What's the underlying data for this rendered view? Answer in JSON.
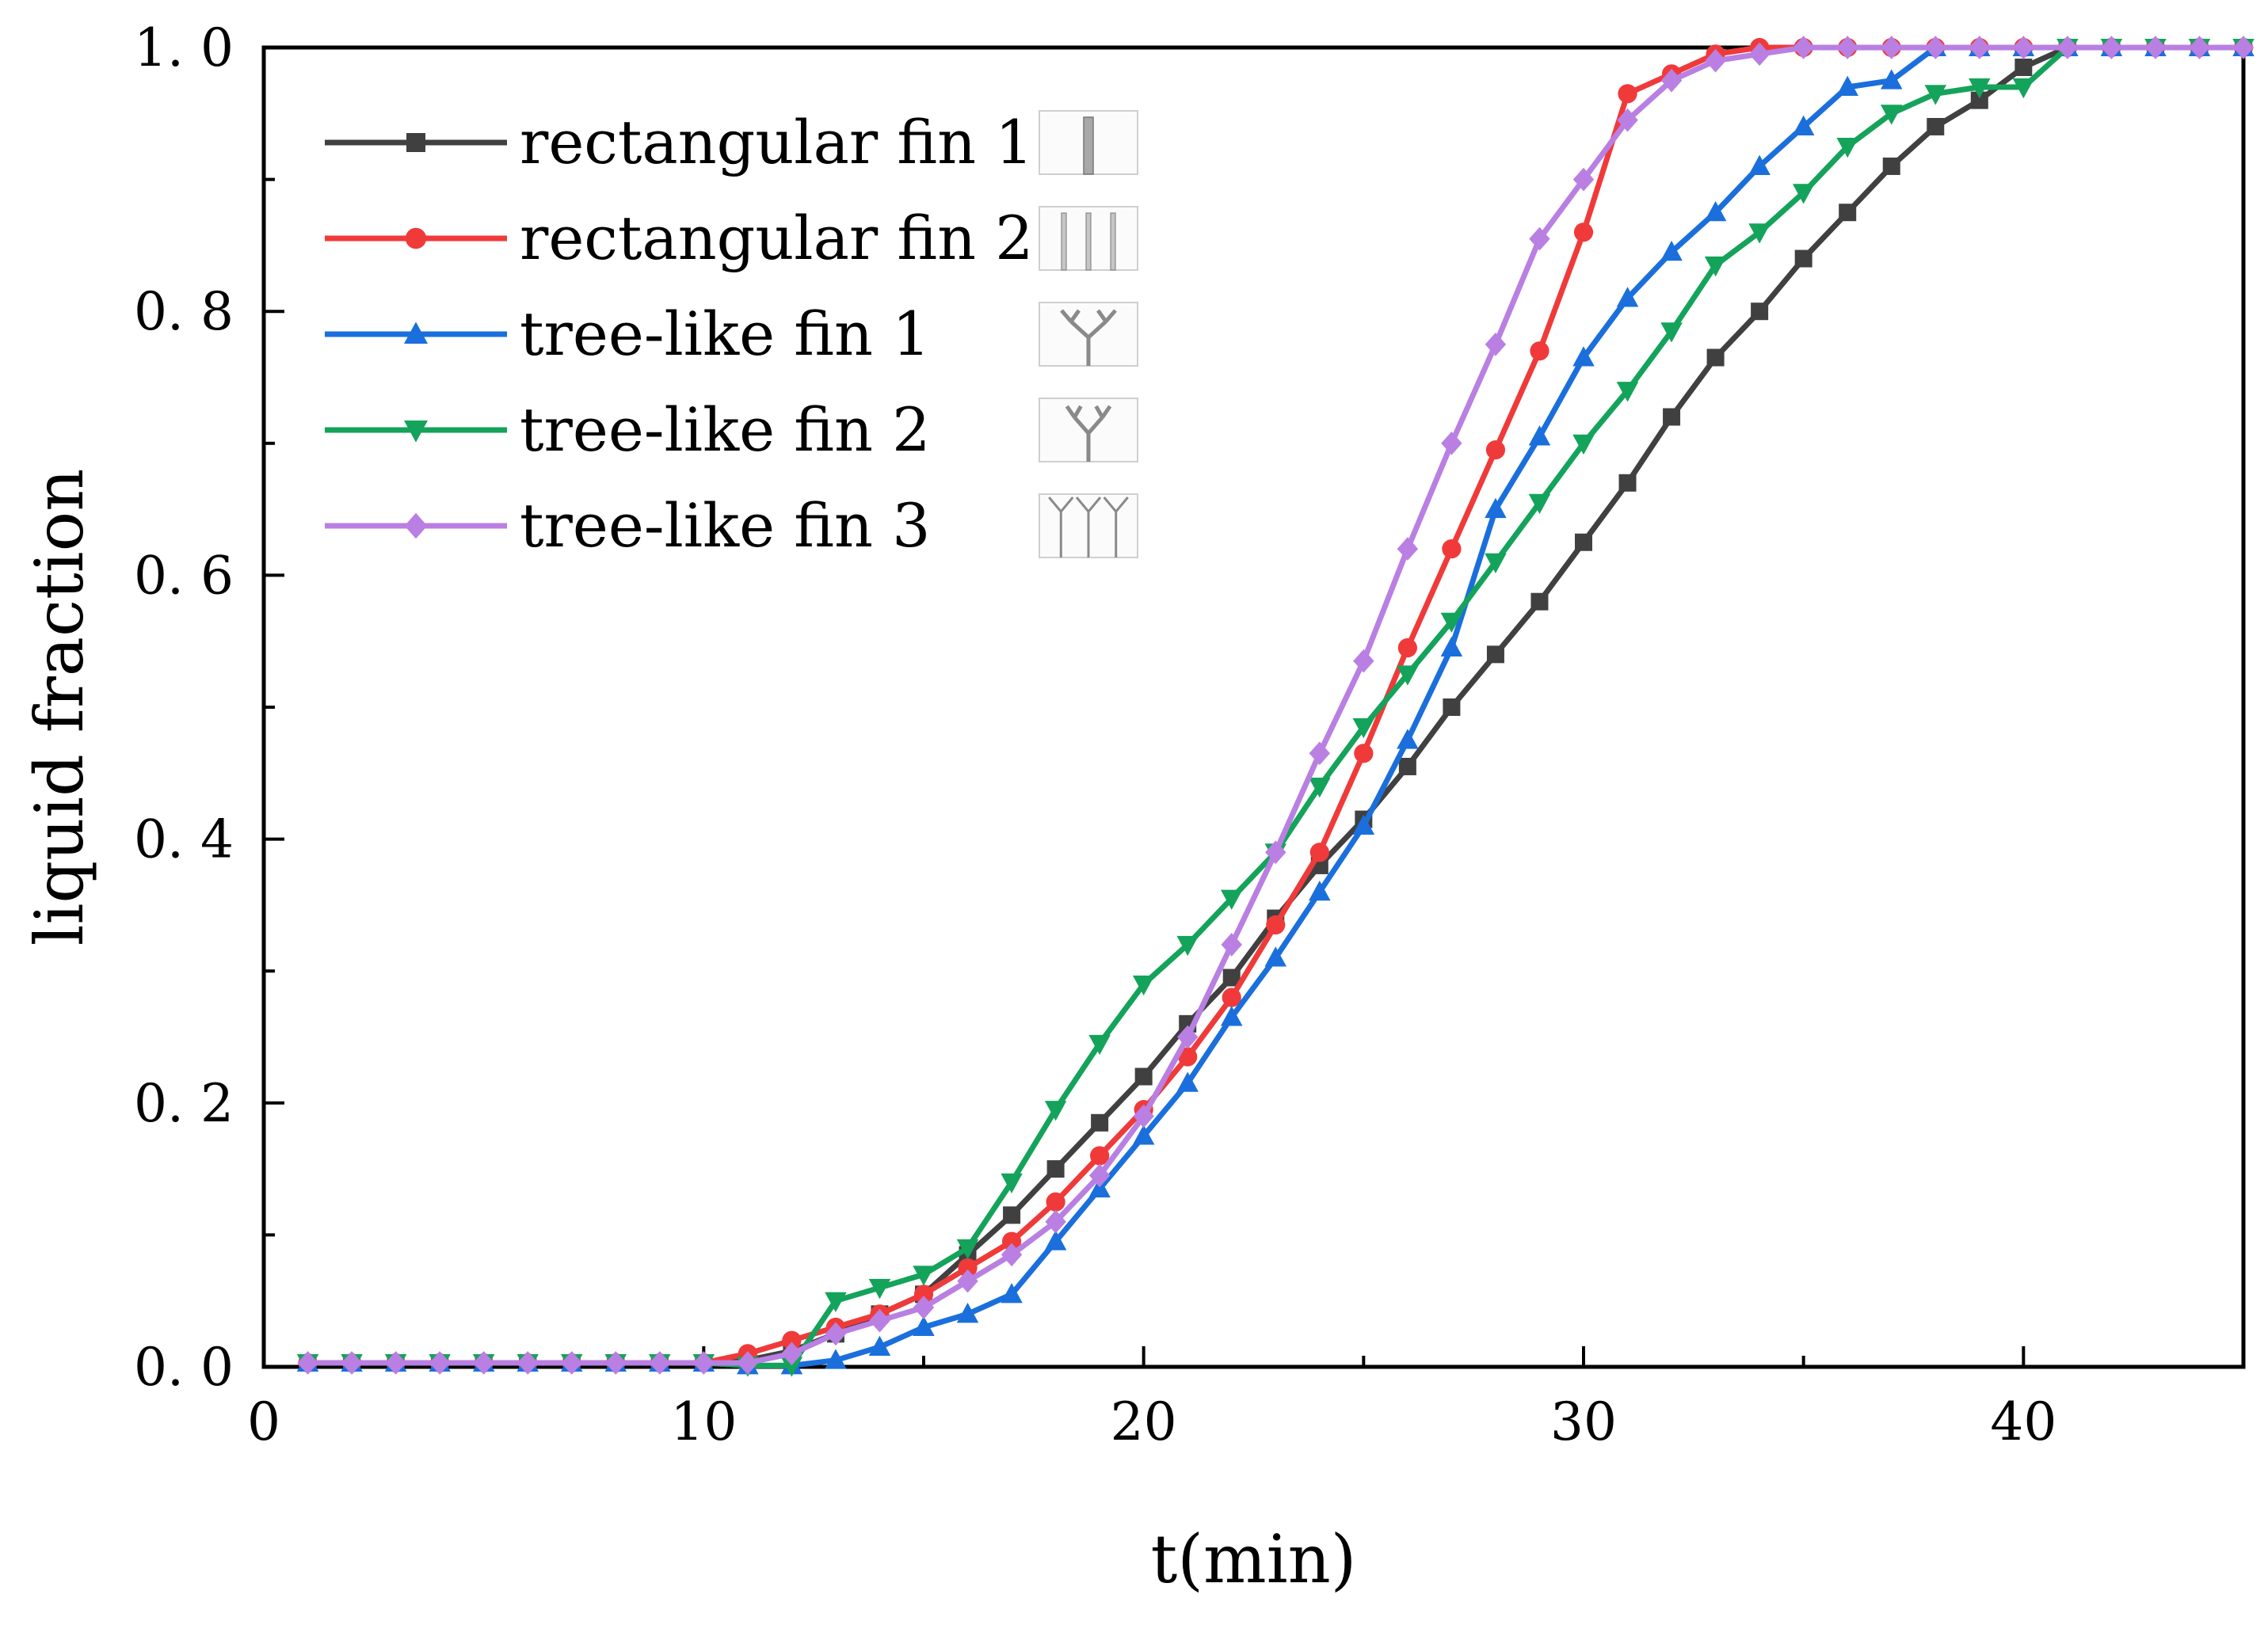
{
  "chart_data": {
    "type": "line",
    "title": "",
    "xlabel": "t(min)",
    "ylabel": "liquid fraction",
    "xlim": [
      0,
      45
    ],
    "ylim": [
      0,
      1.0
    ],
    "xticks": [
      0,
      10,
      20,
      30,
      40
    ],
    "xtick_labels": [
      "0",
      "10",
      "20",
      "30",
      "40"
    ],
    "yticks": [
      0,
      0.2,
      0.4,
      0.6,
      0.8,
      1.0
    ],
    "ytick_labels": [
      "0. 0",
      "0. 2",
      "0. 4",
      "0. 6",
      "0. 8",
      "1. 0"
    ],
    "grid": false,
    "legend_position": "top-left",
    "x": [
      1,
      2,
      3,
      4,
      5,
      6,
      7,
      8,
      9,
      10,
      11,
      12,
      13,
      14,
      15,
      16,
      17,
      18,
      19,
      20,
      21,
      22,
      23,
      24,
      25,
      26,
      27,
      28,
      29,
      30,
      31,
      32,
      33,
      34,
      35,
      36,
      37,
      38,
      39,
      40,
      41,
      42,
      43,
      44,
      45
    ],
    "series": [
      {
        "name": "rectangular fin 1",
        "color": "#404040",
        "marker": "square",
        "values": [
          0.003,
          0.003,
          0.003,
          0.003,
          0.003,
          0.003,
          0.003,
          0.003,
          0.003,
          0.003,
          0.005,
          0.012,
          0.025,
          0.04,
          0.055,
          0.085,
          0.115,
          0.15,
          0.185,
          0.22,
          0.26,
          0.295,
          0.34,
          0.38,
          0.415,
          0.455,
          0.5,
          0.54,
          0.58,
          0.625,
          0.67,
          0.72,
          0.765,
          0.8,
          0.84,
          0.875,
          0.91,
          0.94,
          0.96,
          0.985,
          1.0,
          1.0,
          1.0,
          1.0,
          1.0
        ]
      },
      {
        "name": "rectangular fin 2",
        "color": "#f03a3a",
        "marker": "circle",
        "values": [
          0.003,
          0.003,
          0.003,
          0.003,
          0.003,
          0.003,
          0.003,
          0.003,
          0.003,
          0.003,
          0.01,
          0.02,
          0.03,
          0.04,
          0.055,
          0.075,
          0.095,
          0.125,
          0.16,
          0.195,
          0.235,
          0.28,
          0.335,
          0.39,
          0.465,
          0.545,
          0.62,
          0.695,
          0.77,
          0.86,
          0.965,
          0.98,
          0.995,
          1.0,
          1.0,
          1.0,
          1.0,
          1.0,
          1.0,
          1.0,
          1.0,
          1.0,
          1.0,
          1.0,
          1.0
        ]
      },
      {
        "name": "tree-like fin 1",
        "color": "#1a6fdc",
        "marker": "triangle-up",
        "values": [
          0.003,
          0.003,
          0.003,
          0.003,
          0.003,
          0.003,
          0.003,
          0.003,
          0.003,
          0.003,
          0.001,
          0.001,
          0.005,
          0.015,
          0.03,
          0.04,
          0.055,
          0.095,
          0.135,
          0.175,
          0.215,
          0.265,
          0.31,
          0.36,
          0.41,
          0.475,
          0.545,
          0.65,
          0.705,
          0.765,
          0.81,
          0.845,
          0.875,
          0.91,
          0.94,
          0.97,
          0.975,
          1.0,
          1.0,
          1.0,
          1.0,
          1.0,
          1.0,
          1.0,
          1.0
        ]
      },
      {
        "name": "tree-like fin 2",
        "color": "#14a35a",
        "marker": "triangle-down",
        "values": [
          0.003,
          0.003,
          0.003,
          0.003,
          0.003,
          0.003,
          0.003,
          0.003,
          0.003,
          0.003,
          0.001,
          0.001,
          0.05,
          0.06,
          0.07,
          0.09,
          0.14,
          0.195,
          0.245,
          0.29,
          0.32,
          0.355,
          0.39,
          0.44,
          0.485,
          0.525,
          0.565,
          0.61,
          0.655,
          0.7,
          0.74,
          0.785,
          0.835,
          0.86,
          0.89,
          0.925,
          0.95,
          0.965,
          0.97,
          0.97,
          1.0,
          1.0,
          1.0,
          1.0,
          1.0
        ]
      },
      {
        "name": "tree-like fin 3",
        "color": "#b97fe2",
        "marker": "diamond",
        "values": [
          0.003,
          0.003,
          0.003,
          0.003,
          0.003,
          0.003,
          0.003,
          0.003,
          0.003,
          0.003,
          0.003,
          0.01,
          0.025,
          0.035,
          0.045,
          0.065,
          0.085,
          0.11,
          0.145,
          0.19,
          0.25,
          0.32,
          0.39,
          0.465,
          0.535,
          0.62,
          0.7,
          0.775,
          0.855,
          0.9,
          0.945,
          0.975,
          0.99,
          0.995,
          1.0,
          1.0,
          1.0,
          1.0,
          1.0,
          1.0,
          1.0,
          1.0,
          1.0,
          1.0,
          1.0
        ]
      }
    ]
  }
}
